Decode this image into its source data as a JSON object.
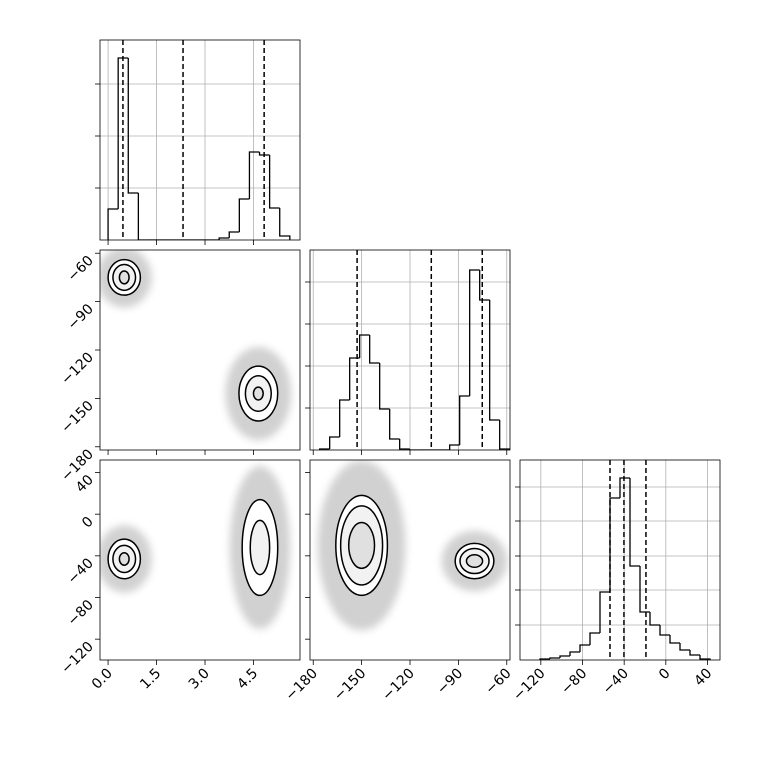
{
  "chart_data": [
    {
      "type": "histogram",
      "color": "#000000",
      "grid": true,
      "bins": [
        0,
        0.3125,
        0.625,
        0.9375,
        1.25,
        1.5625,
        1.875,
        2.1875,
        2.5,
        2.8125,
        3.125,
        3.4375,
        3.75,
        4.0625,
        4.375,
        4.6875,
        5,
        5.3125,
        5.625
      ],
      "values": [
        31,
        182,
        47,
        0,
        0,
        0,
        0,
        0,
        0,
        0,
        0,
        2,
        8,
        41,
        88,
        85,
        32,
        4
      ],
      "vlines": [
        0.46,
        2.32,
        4.83
      ],
      "xlim": [
        -0.25,
        5.94
      ],
      "xticks": [
        0,
        1.5,
        3,
        4.5
      ],
      "ylim": [
        0,
        200
      ],
      "yticks": [
        52,
        104,
        156
      ]
    },
    {
      "type": "contour",
      "color": "#000000",
      "clusters": [
        {
          "x": 0.5,
          "y": -75,
          "rx": [
            0.5,
            0.35,
            0.15
          ],
          "ry": [
            11,
            8,
            4
          ]
        },
        {
          "x": 4.65,
          "y": -147,
          "rx": [
            0.6,
            0.4,
            0.15
          ],
          "ry": [
            17,
            11,
            4
          ]
        }
      ],
      "xlim": [
        -0.25,
        5.94
      ],
      "xticks": [
        0,
        1.5,
        3,
        4.5
      ],
      "ylim": [
        -182,
        -58
      ],
      "yticks": [
        {
          "value": -60,
          "label": "−60"
        },
        {
          "value": -90,
          "label": "−90"
        },
        {
          "value": -120,
          "label": "−120"
        },
        {
          "value": -150,
          "label": "−150"
        },
        {
          "value": -180,
          "label": "−180"
        }
      ]
    },
    {
      "type": "histogram",
      "color": "#000000",
      "grid": true,
      "bins": [
        -176,
        -169.8,
        -163.6,
        -157.4,
        -151.2,
        -145,
        -138.8,
        -132.6,
        -126.4,
        -120.2,
        -114,
        -107.8,
        -101.6,
        -95.4,
        -89.2,
        -83,
        -76.8,
        -70.6,
        -64.4,
        -58.2
      ],
      "values": [
        1,
        13,
        50,
        92,
        115,
        87,
        41,
        11,
        1,
        0,
        0,
        0,
        0,
        5,
        54,
        180,
        150,
        30,
        1
      ],
      "vlines": [
        -152.8,
        -106.8,
        -75.2
      ],
      "xlim": [
        -182,
        -58
      ],
      "xticks": [
        -180,
        -150,
        -120,
        -90,
        -60
      ],
      "ylim": [
        0,
        200
      ],
      "yticks": [
        42,
        84,
        126,
        168
      ]
    },
    {
      "type": "contour",
      "color": "#000000",
      "clusters": [
        {
          "x": 0.5,
          "y": -43,
          "rx": [
            0.5,
            0.35,
            0.15
          ],
          "ry": [
            19,
            13,
            6
          ]
        },
        {
          "x": 4.7,
          "y": -32,
          "rx": [
            0.55,
            0.3
          ],
          "ry": [
            46,
            26
          ]
        }
      ],
      "xlim": [
        -0.25,
        5.94
      ],
      "xticks": [
        {
          "value": 0,
          "label": "0.0"
        },
        {
          "value": 1.5,
          "label": "1.5"
        },
        {
          "value": 3,
          "label": "3.0"
        },
        {
          "value": 4.5,
          "label": "4.5"
        }
      ],
      "ylim": [
        -140,
        52
      ],
      "yticks": [
        40,
        0,
        {
          "value": -40,
          "label": "−40"
        },
        {
          "value": -80,
          "label": "−80"
        },
        {
          "value": -120,
          "label": "−120"
        }
      ]
    },
    {
      "type": "contour",
      "color": "#000000",
      "clusters": [
        {
          "x": -150,
          "y": -30,
          "rx": [
            16,
            13,
            8
          ],
          "ry": [
            48,
            38,
            22
          ]
        },
        {
          "x": -80,
          "y": -45,
          "rx": [
            12,
            9,
            5
          ],
          "ry": [
            17,
            12,
            6
          ]
        }
      ],
      "xlim": [
        -182,
        -58
      ],
      "xticks": [
        {
          "value": -180,
          "label": "−180"
        },
        {
          "value": -150,
          "label": "−150"
        },
        {
          "value": -120,
          "label": "−120"
        },
        {
          "value": -90,
          "label": "−90"
        },
        {
          "value": -60,
          "label": "−60"
        }
      ],
      "ylim": [
        -140,
        52
      ],
      "yticks": [
        40,
        0,
        -40,
        -80,
        -120
      ]
    },
    {
      "type": "histogram",
      "color": "#000000",
      "grid": true,
      "bins": [
        -120.8,
        -111.2,
        -101.6,
        -92,
        -82.4,
        -72.8,
        -63.2,
        -53.6,
        -44,
        -34.4,
        -24.8,
        -15.2,
        -5.6,
        4,
        13.6,
        23.2,
        32.8,
        42.4
      ],
      "values": [
        1,
        2,
        4,
        8,
        15,
        27,
        68,
        162,
        182,
        94,
        48,
        35,
        25,
        17,
        10,
        5,
        1
      ],
      "vlines": [
        -53.6,
        -40.2,
        -19.1
      ],
      "xlim": [
        -140,
        52
      ],
      "xticks": [
        {
          "value": -120,
          "label": "−120"
        },
        {
          "value": -80,
          "label": "−80"
        },
        {
          "value": -40,
          "label": "−40"
        },
        0,
        40
      ],
      "ylim": [
        0,
        200
      ],
      "yticks": [
        35,
        70,
        104,
        139,
        173
      ]
    }
  ]
}
